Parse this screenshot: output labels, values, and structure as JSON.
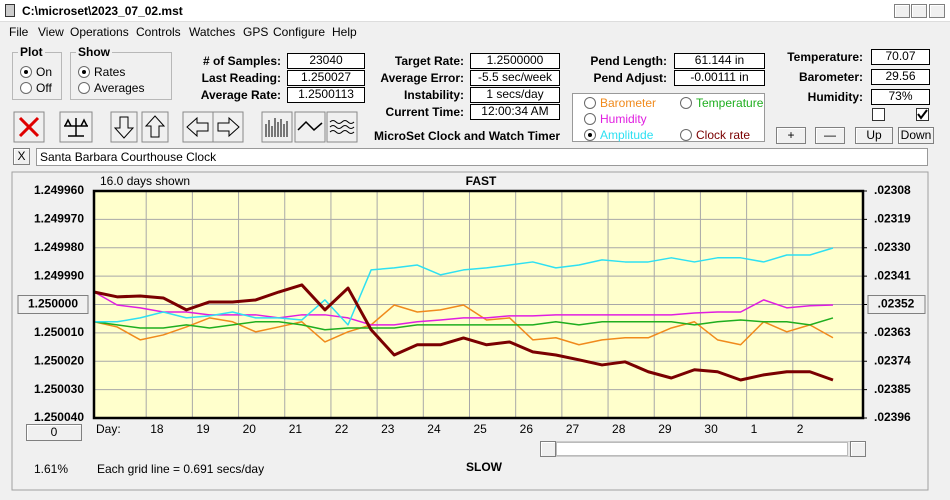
{
  "window": {
    "title": "C:\\microset\\2023_07_02.mst"
  },
  "menu": [
    "File",
    "View",
    "Operations",
    "Controls",
    "Watches",
    "GPS",
    "Configure",
    "Help"
  ],
  "plot": {
    "title": "Plot",
    "options": [
      "On",
      "Off"
    ],
    "selected": 0
  },
  "show": {
    "title": "Show",
    "options": [
      "Rates",
      "Averages"
    ],
    "selected": 0
  },
  "fields": [
    {
      "label": "# of Samples:",
      "value": "23040"
    },
    {
      "label": "Last Reading:",
      "value": "1.250027"
    },
    {
      "label": "Average Rate:",
      "value": "1.2500113"
    },
    {
      "label": "Target Rate:",
      "value": "1.2500000"
    },
    {
      "label": "Average Error:",
      "value": "-5.5 sec/week"
    },
    {
      "label": "Instability:",
      "value": "1 secs/day"
    },
    {
      "label": "Current Time:",
      "value": "12:00:34 AM"
    },
    {
      "label": "Pend Length:",
      "value": "61.144 in"
    },
    {
      "label": "Pend Adjust:",
      "value": "-0.00111 in"
    },
    {
      "label": "Temperature:",
      "value": "70.07"
    },
    {
      "label": "Barometer:",
      "value": "29.56"
    },
    {
      "label": "Humidity:",
      "value": "73%"
    }
  ],
  "app_title": "MicroSet Clock and Watch Timer",
  "buttons": [
    "+",
    "—",
    "Up",
    "Down"
  ],
  "clock": {
    "close": "X",
    "name": "Santa Barbara Courthouse Clock"
  },
  "chart_data": {
    "type": "line",
    "top_label": "FAST",
    "bottom_label": "SLOW",
    "span_label": "16.0 days shown",
    "x_label": "Day:",
    "background": "#ffffcc",
    "grid": true,
    "selected_series": 3,
    "x": [
      0,
      0.5,
      1,
      1.5,
      2,
      2.5,
      3,
      3.5,
      4,
      4.5,
      5,
      5.5,
      6,
      6.5,
      7,
      7.5,
      8,
      8.5,
      9,
      9.5,
      10,
      10.5,
      11,
      11.5,
      12,
      12.5,
      13,
      13.5,
      14,
      14.5,
      15,
      15.5,
      16
    ],
    "xlim": [
      0,
      16.65
    ],
    "xticks": [
      {
        "value": 1.13,
        "label": "18"
      },
      {
        "value": 2.13,
        "label": "19"
      },
      {
        "value": 3.13,
        "label": "20"
      },
      {
        "value": 4.13,
        "label": "21"
      },
      {
        "value": 5.13,
        "label": "22"
      },
      {
        "value": 6.13,
        "label": "23"
      },
      {
        "value": 7.13,
        "label": "24"
      },
      {
        "value": 8.13,
        "label": "25"
      },
      {
        "value": 9.13,
        "label": "26"
      },
      {
        "value": 10.13,
        "label": "27"
      },
      {
        "value": 11.13,
        "label": "28"
      },
      {
        "value": 12.13,
        "label": "29"
      },
      {
        "value": 13.13,
        "label": "30"
      },
      {
        "value": 14.13,
        "label": "1"
      },
      {
        "value": 15.13,
        "label": "2"
      }
    ],
    "ylim": [
      1.25004,
      1.24996
    ],
    "yticks": [
      {
        "value": 1.24996,
        "label": "1.249960"
      },
      {
        "value": 1.24997,
        "label": "1.249970"
      },
      {
        "value": 1.24998,
        "label": "1.249980"
      },
      {
        "value": 1.24999,
        "label": "1.249990"
      },
      {
        "value": 1.25,
        "label": "1.250000"
      },
      {
        "value": 1.25001,
        "label": "1.250010"
      },
      {
        "value": 1.25002,
        "label": "1.250020"
      },
      {
        "value": 1.25003,
        "label": "1.250030"
      },
      {
        "value": 1.25004,
        "label": "1.250040"
      }
    ],
    "y2lim": [
      0.02396,
      0.02308
    ],
    "y2ticks": [
      {
        "value": 0.02308,
        "label": ".02308"
      },
      {
        "value": 0.02319,
        "label": ".02319"
      },
      {
        "value": 0.0233,
        "label": ".02330"
      },
      {
        "value": 0.02341,
        "label": ".02341"
      },
      {
        "value": 0.02352,
        "label": ".02352"
      },
      {
        "value": 0.02363,
        "label": ".02363"
      },
      {
        "value": 0.02374,
        "label": ".02374"
      },
      {
        "value": 0.02385,
        "label": ".02385"
      },
      {
        "value": 0.02396,
        "label": ".02396"
      }
    ],
    "series": [
      {
        "name": "Barometer",
        "color": "#f08a1c",
        "axis": "y2",
        "values": [
          0.023587,
          0.023607,
          0.023657,
          0.023638,
          0.023607,
          0.023572,
          0.023587,
          0.023626,
          0.023607,
          0.023587,
          0.023665,
          0.023626,
          0.023599,
          0.023522,
          0.023549,
          0.023541,
          0.023522,
          0.02358,
          0.023572,
          0.023657,
          0.023649,
          0.023676,
          0.023657,
          0.023649,
          0.023649,
          0.023611,
          0.023587,
          0.023657,
          0.023676,
          0.023587,
          0.023626,
          0.023599,
          0.023649
        ]
      },
      {
        "name": "Temperature",
        "color": "#1fae1f",
        "axis": "y2",
        "values": [
          0.023587,
          0.023599,
          0.023611,
          0.023611,
          0.023599,
          0.023611,
          0.023599,
          0.023587,
          0.023587,
          0.023599,
          0.023618,
          0.023611,
          0.023611,
          0.023611,
          0.023599,
          0.023599,
          0.023599,
          0.023599,
          0.023599,
          0.023599,
          0.023587,
          0.023599,
          0.023587,
          0.023587,
          0.023587,
          0.023587,
          0.023599,
          0.023587,
          0.02358,
          0.023587,
          0.023587,
          0.023599,
          0.023572
        ]
      },
      {
        "name": "Humidity",
        "color": "#e01ee0",
        "axis": "y2",
        "values": [
          0.023471,
          0.023522,
          0.023533,
          0.023549,
          0.023549,
          0.02356,
          0.02356,
          0.02356,
          0.023572,
          0.02356,
          0.02356,
          0.023572,
          0.023599,
          0.023599,
          0.023587,
          0.02358,
          0.023572,
          0.023572,
          0.023564,
          0.023564,
          0.02356,
          0.02356,
          0.02356,
          0.02356,
          0.02356,
          0.02356,
          0.023553,
          0.023549,
          0.023549,
          0.023502,
          0.023533,
          0.023525,
          0.023522
        ]
      },
      {
        "name": "Amplitude",
        "color": "#2ee0f2",
        "axis": "y2",
        "values": [
          0.023587,
          0.023587,
          0.023572,
          0.023549,
          0.023572,
          0.023564,
          0.023549,
          0.023572,
          0.023572,
          0.02358,
          0.023502,
          0.023599,
          0.023386,
          0.023378,
          0.023367,
          0.023405,
          0.023386,
          0.023378,
          0.023367,
          0.023355,
          0.023378,
          0.023367,
          0.023347,
          0.023355,
          0.023355,
          0.023339,
          0.023355,
          0.023339,
          0.023339,
          0.023355,
          0.023328,
          0.023328,
          0.023301
        ]
      },
      {
        "name": "Clock rate",
        "color": "#7a0000",
        "axis": "y",
        "values": [
          1.2499956,
          1.2499973,
          1.249997,
          1.2499977,
          1.2500019,
          1.2499991,
          1.2499991,
          1.2499984,
          1.2499956,
          1.2499931,
          1.2500019,
          1.2499942,
          1.2500089,
          1.2500178,
          1.2500142,
          1.2500142,
          1.2500118,
          1.2500142,
          1.2500132,
          1.2500167,
          1.2500178,
          1.2500195,
          1.2500213,
          1.2500202,
          1.2500237,
          1.2500259,
          1.250023,
          1.2500237,
          1.2500266,
          1.2500248,
          1.2500237,
          1.2500237,
          1.2500266
        ]
      }
    ]
  },
  "status": {
    "offset_button": "0",
    "percent": "1.61%",
    "grid_note": "Each grid line = 0.691 secs/day"
  }
}
